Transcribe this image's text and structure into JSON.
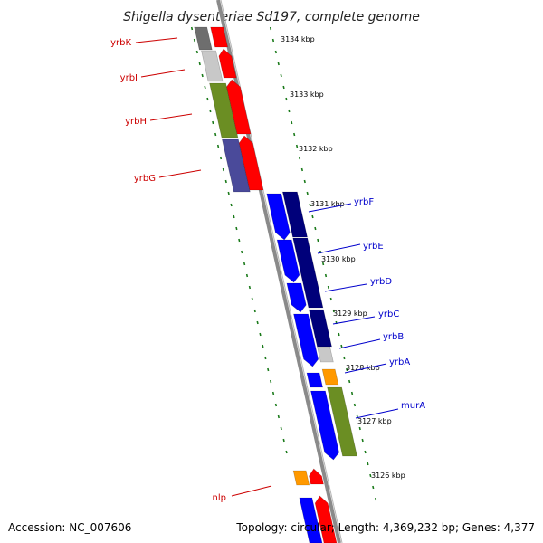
{
  "title": "Shigella dysenteriae Sd197, complete genome",
  "accession_text": "Accession: NC_007606",
  "topology_text": "Topology: circular; Length: 4,369,232 bp; Genes: 4,377",
  "colors": {
    "backbone": "#8a8a8a",
    "tick": "#1a7a1a",
    "red": "#ff0000",
    "blue": "#0000ff",
    "navy": "#00007a",
    "olive": "#6b8e23",
    "purple": "#4a4a9a",
    "gray": "#6e6e6e",
    "lightgray": "#c8c8c8",
    "orange": "#ff9900",
    "label_red": "#cc0000",
    "label_blue": "#0000cc"
  },
  "kbp_labels": [
    {
      "id": "k3134",
      "text": "3134 kbp"
    },
    {
      "id": "k3133",
      "text": "3133 kbp"
    },
    {
      "id": "k3132",
      "text": "3132 kbp"
    },
    {
      "id": "k3131",
      "text": "3131 kbp"
    },
    {
      "id": "k3130",
      "text": "3130 kbp"
    },
    {
      "id": "k3129",
      "text": "3129 kbp"
    },
    {
      "id": "k3128",
      "text": "3128 kbp"
    },
    {
      "id": "k3127",
      "text": "3127 kbp"
    },
    {
      "id": "k3126",
      "text": "3126 kbp"
    }
  ],
  "gene_labels": [
    {
      "id": "yrbK",
      "text": "yrbK",
      "strand": "left"
    },
    {
      "id": "yrbI",
      "text": "yrbI",
      "strand": "left"
    },
    {
      "id": "yrbH",
      "text": "yrbH",
      "strand": "left"
    },
    {
      "id": "yrbG",
      "text": "yrbG",
      "strand": "left"
    },
    {
      "id": "nlp",
      "text": "nlp",
      "strand": "left"
    },
    {
      "id": "yrbF",
      "text": "yrbF",
      "strand": "right"
    },
    {
      "id": "yrbE",
      "text": "yrbE",
      "strand": "right"
    },
    {
      "id": "yrbD",
      "text": "yrbD",
      "strand": "right"
    },
    {
      "id": "yrbC",
      "text": "yrbC",
      "strand": "right"
    },
    {
      "id": "yrbB",
      "text": "yrbB",
      "strand": "right"
    },
    {
      "id": "yrbA",
      "text": "yrbA",
      "strand": "right"
    },
    {
      "id": "murA",
      "text": "murA",
      "strand": "right"
    }
  ]
}
